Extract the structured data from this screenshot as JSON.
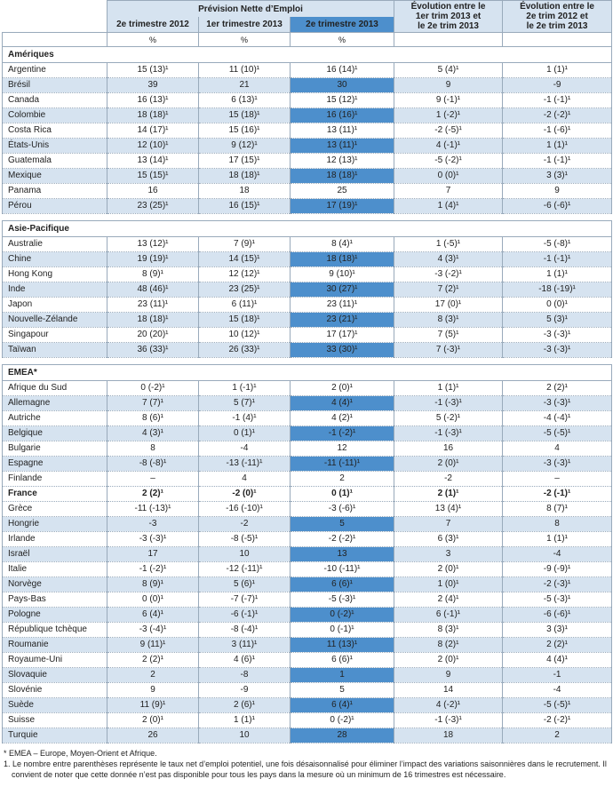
{
  "header": {
    "group_title": "Prévision Nette d’Emploi",
    "col_q4_2012": "2e trimestre 2012",
    "col_q1_2013": "1er trimestre 2013",
    "col_q2_2013": "2e trimestre 2013",
    "col_evol1": [
      "Évolution entre le",
      "1er trim 2013 et",
      "le 2e trim 2013"
    ],
    "col_evol2": [
      "Évolution entre le",
      "2e trim 2012 et",
      "le 2e trim 2013"
    ],
    "unit": "%"
  },
  "regions": [
    {
      "name": "Amériques",
      "rows": [
        [
          "Argentine",
          "15 (13)¹",
          "11 (10)¹",
          "16 (14)¹",
          "5 (4)¹",
          "1 (1)¹"
        ],
        [
          "Brésil",
          "39",
          "21",
          "30",
          "9",
          "-9"
        ],
        [
          "Canada",
          "16 (13)¹",
          "6 (13)¹",
          "15 (12)¹",
          "9 (-1)¹",
          "-1 (-1)¹"
        ],
        [
          "Colombie",
          "18 (18)¹",
          "15 (18)¹",
          "16 (16)¹",
          "1 (-2)¹",
          "-2 (-2)¹"
        ],
        [
          "Costa Rica",
          "14 (17)¹",
          "15 (16)¹",
          "13 (11)¹",
          "-2 (-5)¹",
          "-1 (-6)¹"
        ],
        [
          "États-Unis",
          "12 (10)¹",
          "9 (12)¹",
          "13 (11)¹",
          "4 (-1)¹",
          "1 (1)¹"
        ],
        [
          "Guatemala",
          "13 (14)¹",
          "17 (15)¹",
          "12 (13)¹",
          "-5 (-2)¹",
          "-1 (-1)¹"
        ],
        [
          "Mexique",
          "15 (15)¹",
          "18 (18)¹",
          "18 (18)¹",
          "0 (0)¹",
          "3 (3)¹"
        ],
        [
          "Panama",
          "16",
          "18",
          "25",
          "7",
          "9"
        ],
        [
          "Pérou",
          "23 (25)¹",
          "16 (15)¹",
          "17 (19)¹",
          "1 (4)¹",
          "-6 (-6)¹"
        ]
      ]
    },
    {
      "name": "Asie-Pacifique",
      "rows": [
        [
          "Australie",
          "13 (12)¹",
          "7 (9)¹",
          "8 (4)¹",
          "1 (-5)¹",
          "-5 (-8)¹"
        ],
        [
          "Chine",
          "19 (19)¹",
          "14 (15)¹",
          "18 (18)¹",
          "4 (3)¹",
          "-1 (-1)¹"
        ],
        [
          "Hong Kong",
          "8 (9)¹",
          "12 (12)¹",
          "9 (10)¹",
          "-3 (-2)¹",
          "1 (1)¹"
        ],
        [
          "Inde",
          "48 (46)¹",
          "23 (25)¹",
          "30 (27)¹",
          "7 (2)¹",
          "-18 (-19)¹"
        ],
        [
          "Japon",
          "23 (11)¹",
          "6 (11)¹",
          "23 (11)¹",
          "17 (0)¹",
          "0 (0)¹"
        ],
        [
          "Nouvelle-Zélande",
          "18 (18)¹",
          "15 (18)¹",
          "23 (21)¹",
          "8 (3)¹",
          "5 (3)¹"
        ],
        [
          "Singapour",
          "20 (20)¹",
          "10 (12)¹",
          "17 (17)¹",
          "7 (5)¹",
          "-3 (-3)¹"
        ],
        [
          "Taïwan",
          "36 (33)¹",
          "26 (33)¹",
          "33 (30)¹",
          "7 (-3)¹",
          "-3 (-3)¹"
        ]
      ]
    },
    {
      "name": "EMEA*",
      "rows": [
        [
          "Afrique du Sud",
          "0 (-2)¹",
          "1 (-1)¹",
          "2 (0)¹",
          "1 (1)¹",
          "2 (2)¹"
        ],
        [
          "Allemagne",
          "7 (7)¹",
          "5 (7)¹",
          "4 (4)¹",
          "-1 (-3)¹",
          "-3 (-3)¹"
        ],
        [
          "Autriche",
          "8 (6)¹",
          "-1 (4)¹",
          "4 (2)¹",
          "5 (-2)¹",
          "-4 (-4)¹"
        ],
        [
          "Belgique",
          "4 (3)¹",
          "0 (1)¹",
          "-1 (-2)¹",
          "-1 (-3)¹",
          "-5 (-5)¹"
        ],
        [
          "Bulgarie",
          "8",
          "-4",
          "12",
          "16",
          "4"
        ],
        [
          "Espagne",
          "-8 (-8)¹",
          "-13 (-11)¹",
          "-11 (-11)¹",
          "2 (0)¹",
          "-3 (-3)¹"
        ],
        [
          "Finlande",
          "–",
          "4",
          "2",
          "-2",
          "–"
        ],
        [
          "France",
          "2 (2)¹",
          "-2 (0)¹",
          "0 (1)¹",
          "2 (1)¹",
          "-2 (-1)¹"
        ],
        [
          "Grèce",
          "-11 (-13)¹",
          "-16 (-10)¹",
          "-3 (-6)¹",
          "13 (4)¹",
          "8 (7)¹"
        ],
        [
          "Hongrie",
          "-3",
          "-2",
          "5",
          "7",
          "8"
        ],
        [
          "Irlande",
          "-3 (-3)¹",
          "-8 (-5)¹",
          "-2 (-2)¹",
          "6 (3)¹",
          "1 (1)¹"
        ],
        [
          "Israël",
          "17",
          "10",
          "13",
          "3",
          "-4"
        ],
        [
          "Italie",
          "-1 (-2)¹",
          "-12 (-11)¹",
          "-10 (-11)¹",
          "2 (0)¹",
          "-9 (-9)¹"
        ],
        [
          "Norvège",
          "8 (9)¹",
          "5 (6)¹",
          "6 (6)¹",
          "1 (0)¹",
          "-2 (-3)¹"
        ],
        [
          "Pays-Bas",
          "0 (0)¹",
          "-7 (-7)¹",
          "-5 (-3)¹",
          "2 (4)¹",
          "-5 (-3)¹"
        ],
        [
          "Pologne",
          "6 (4)¹",
          "-6 (-1)¹",
          "0 (-2)¹",
          "6 (-1)¹",
          "-6 (-6)¹"
        ],
        [
          "République tchèque",
          "-3 (-4)¹",
          "-8 (-4)¹",
          "0 (-1)¹",
          "8 (3)¹",
          "3 (3)¹"
        ],
        [
          "Roumanie",
          "9 (11)¹",
          "3 (11)¹",
          "11 (13)¹",
          "8 (2)¹",
          "2 (2)¹"
        ],
        [
          "Royaume-Uni",
          "2 (2)¹",
          "4 (6)¹",
          "6 (6)¹",
          "2 (0)¹",
          "4 (4)¹"
        ],
        [
          "Slovaquie",
          "2",
          "-8",
          "1",
          "9",
          "-1"
        ],
        [
          "Slovénie",
          "9",
          "-9",
          "5",
          "14",
          "-4"
        ],
        [
          "Suède",
          "11 (9)¹",
          "2 (6)¹",
          "6 (4)¹",
          "4 (-2)¹",
          "-5 (-5)¹"
        ],
        [
          "Suisse",
          "2 (0)¹",
          "1 (1)¹",
          "0 (-2)¹",
          "-1 (-3)¹",
          "-2 (-2)¹"
        ],
        [
          "Turquie",
          "26",
          "10",
          "28",
          "18",
          "2"
        ]
      ]
    }
  ],
  "footnotes": [
    "* EMEA – Europe, Moyen-Orient et Afrique.",
    "1. Le nombre entre parenthèses représente le taux net d’emploi potentiel, une fois désaisonnalisé pour éliminer l’impact des variations saisonnières dans le recrutement. Il convient de noter que cette donnée n’est pas disponible pour tous les pays dans la mesure où un minimum de 16 trimestres est nécessaire."
  ]
}
